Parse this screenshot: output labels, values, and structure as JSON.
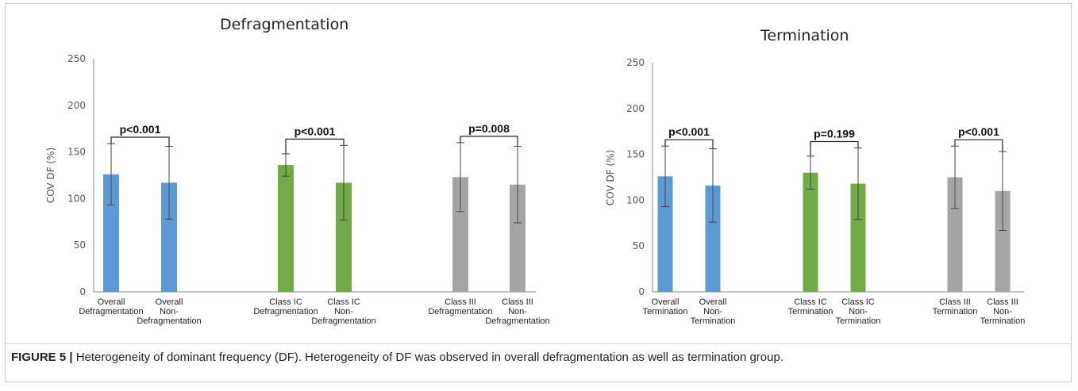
{
  "figure": {
    "caption_label": "FIGURE 5 |",
    "caption_text": " Heterogeneity of dominant frequency (DF). Heterogeneity of DF was observed in overall defragmentation as well as termination group."
  },
  "colors": {
    "blue": "#5b9bd5",
    "green": "#70ad47",
    "gray": "#a5a5a5",
    "axis": "#444444",
    "text": "#222222"
  },
  "chart_data": [
    {
      "type": "bar",
      "title": "Defragmentation",
      "ylabel": "COV DF (%)",
      "ylim": [
        0,
        250
      ],
      "yticks": [
        0,
        50,
        100,
        150,
        200,
        250
      ],
      "grid": false,
      "categories": [
        [
          "Overall",
          "Defragmentation"
        ],
        [
          "Overall",
          "Non-",
          "Defragmentation"
        ],
        [
          "Class IC",
          "Defragmentation"
        ],
        [
          "Class IC",
          "Non-",
          "Defragmentation"
        ],
        [
          "Class III",
          "Defragmentation"
        ],
        [
          "Class III",
          "Non-",
          "Defragmentation"
        ]
      ],
      "values": [
        126,
        117,
        136,
        117,
        123,
        115
      ],
      "error_bars": [
        33,
        39,
        12,
        40,
        37,
        41
      ],
      "bar_colors": [
        "blue",
        "blue",
        "green",
        "green",
        "gray",
        "gray"
      ],
      "comparisons": [
        {
          "pair": [
            0,
            1
          ],
          "label": "p<0.001"
        },
        {
          "pair": [
            2,
            3
          ],
          "label": "p<0.001"
        },
        {
          "pair": [
            4,
            5
          ],
          "label": "p=0.008"
        }
      ]
    },
    {
      "type": "bar",
      "title": "Termination",
      "ylabel": "COV DF (%)",
      "ylim": [
        0,
        250
      ],
      "yticks": [
        0,
        50,
        100,
        150,
        200,
        250
      ],
      "grid": false,
      "categories": [
        [
          "Overall",
          "Termination"
        ],
        [
          "Overall",
          "Non-",
          "Termination"
        ],
        [
          "Class IC",
          "Termination"
        ],
        [
          "Class IC",
          "Non-",
          "Termination"
        ],
        [
          "Class III",
          "Termination"
        ],
        [
          "Class III",
          "Non-",
          "Termination"
        ]
      ],
      "values": [
        126,
        116,
        130,
        118,
        125,
        110
      ],
      "error_bars": [
        33,
        40,
        18,
        39,
        34,
        43
      ],
      "bar_colors": [
        "blue",
        "blue",
        "green",
        "green",
        "gray",
        "gray"
      ],
      "comparisons": [
        {
          "pair": [
            0,
            1
          ],
          "label": "p<0.001"
        },
        {
          "pair": [
            2,
            3
          ],
          "label": "p=0.199"
        },
        {
          "pair": [
            4,
            5
          ],
          "label": "p<0.001"
        }
      ]
    }
  ]
}
